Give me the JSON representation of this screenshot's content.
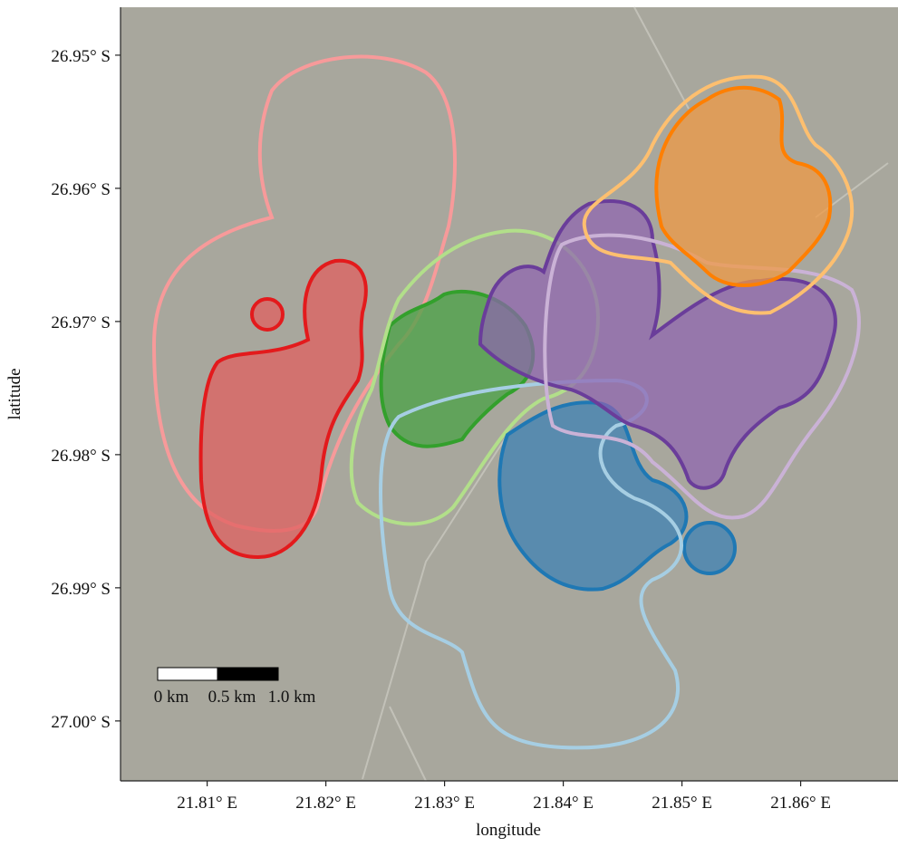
{
  "chart_data": {
    "type": "map",
    "xlabel": "longitude",
    "ylabel": "latitude",
    "xlim": [
      21.8027,
      21.8682
    ],
    "ylim": [
      -27.0045,
      -26.9464
    ],
    "xticks": [
      {
        "value": 21.81,
        "label": "21.81° E"
      },
      {
        "value": 21.82,
        "label": "21.82° E"
      },
      {
        "value": 21.83,
        "label": "21.83° E"
      },
      {
        "value": 21.84,
        "label": "21.84° E"
      },
      {
        "value": 21.85,
        "label": "21.85° E"
      },
      {
        "value": 21.86,
        "label": "21.86° E"
      }
    ],
    "yticks": [
      {
        "value": -26.95,
        "label": "26.95° S"
      },
      {
        "value": -26.96,
        "label": "26.96° S"
      },
      {
        "value": -26.97,
        "label": "26.97° S"
      },
      {
        "value": -26.98,
        "label": "26.98° S"
      },
      {
        "value": -26.99,
        "label": "26.99° S"
      },
      {
        "value": -27.0,
        "label": "27.00° S"
      }
    ],
    "scalebar": [
      "0 km",
      "0.5 km",
      "1.0 km"
    ]
  }
}
